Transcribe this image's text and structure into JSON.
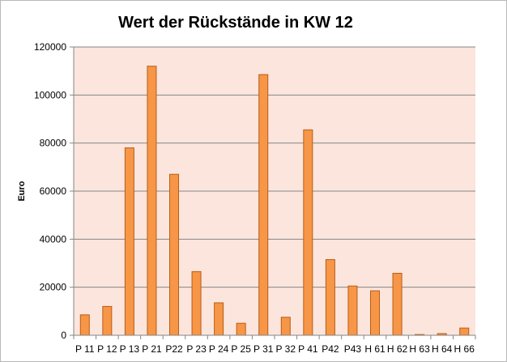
{
  "chart_data": {
    "type": "bar",
    "title": "Wert der Rückstände in KW 12",
    "xlabel": "",
    "ylabel": "Euro",
    "ylim": [
      0,
      120000
    ],
    "yticks": [
      0,
      20000,
      40000,
      60000,
      80000,
      100000,
      120000
    ],
    "grid": true,
    "legend": "none",
    "categories": [
      "P 11",
      "P 12",
      "P 13",
      "P 21",
      "P22",
      "P 23",
      "P 24",
      "P 25",
      "P 31",
      "P 32",
      "P 41",
      "P42",
      "P43",
      "H 61",
      "H 62",
      "H 63",
      "H 64",
      "H 66"
    ],
    "values": [
      8500,
      12000,
      78000,
      112000,
      67000,
      26500,
      13500,
      5000,
      108500,
      7500,
      85500,
      31500,
      20500,
      18500,
      25800,
      300,
      700,
      3000
    ],
    "colors": {
      "plot_background": "#fbe5dc",
      "bar_fill": "#f79646",
      "bar_stroke": "#b85d1a",
      "grid": "#868686",
      "axis": "#868686"
    }
  }
}
